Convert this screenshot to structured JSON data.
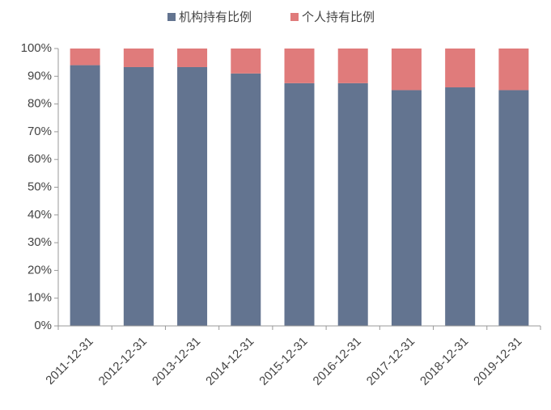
{
  "chart_data": {
    "type": "stacked_bar",
    "categories": [
      "2011-12-31",
      "2012-12-31",
      "2013-12-31",
      "2014-12-31",
      "2015-12-31",
      "2016-12-31",
      "2017-12-31",
      "2018-12-31",
      "2019-12-31"
    ],
    "series": [
      {
        "name": "机构持有比例",
        "color": "#637490",
        "values": [
          94,
          93.3,
          93.3,
          91,
          87.5,
          87.5,
          85,
          86,
          85
        ]
      },
      {
        "name": "个人持有比例",
        "color": "#e07b7b",
        "values": [
          6,
          6.7,
          6.7,
          9,
          12.5,
          12.5,
          15,
          14,
          15
        ]
      }
    ],
    "ylim": [
      0,
      100
    ],
    "yticks": [
      {
        "value": 0,
        "label": "0%"
      },
      {
        "value": 10,
        "label": "10%"
      },
      {
        "value": 20,
        "label": "20%"
      },
      {
        "value": 30,
        "label": "30%"
      },
      {
        "value": 40,
        "label": "40%"
      },
      {
        "value": 50,
        "label": "50%"
      },
      {
        "value": 60,
        "label": "60%"
      },
      {
        "value": 70,
        "label": "70%"
      },
      {
        "value": 80,
        "label": "80%"
      },
      {
        "value": 90,
        "label": "90%"
      },
      {
        "value": 100,
        "label": "100%"
      }
    ],
    "legend": "top"
  }
}
